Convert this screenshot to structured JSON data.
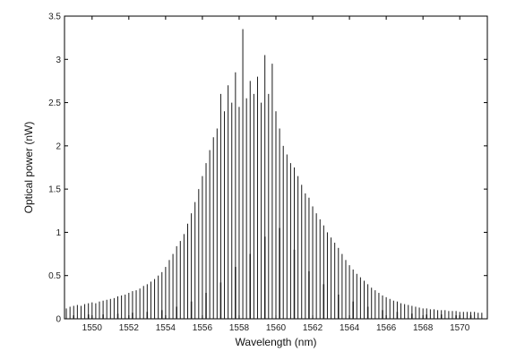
{
  "chart_data": {
    "type": "line",
    "title": "",
    "xlabel": "Wavelength (nm)",
    "ylabel": "Optical power (nW)",
    "xlim": [
      1548.5,
      1571.5
    ],
    "ylim": [
      0,
      3.5
    ],
    "xticks": [
      "1550",
      "1552",
      "1554",
      "1556",
      "1558",
      "1560",
      "1562",
      "1564",
      "1566",
      "1568",
      "1570"
    ],
    "yticks": [
      "0",
      "0.5",
      "1",
      "1.5",
      "2",
      "2.5",
      "3",
      "3.5"
    ],
    "grid": false,
    "legend": "none",
    "line_color": "#1a1a1a",
    "series": [
      {
        "x": [
          1548.6,
          1548.8,
          1549.0,
          1549.2,
          1549.4,
          1549.6,
          1549.8,
          1550.0,
          1550.2,
          1550.4,
          1550.6,
          1550.8,
          1551.0,
          1551.2,
          1551.4,
          1551.6,
          1551.8,
          1552.0,
          1552.2,
          1552.4,
          1552.6,
          1552.8,
          1553.0,
          1553.2,
          1553.4,
          1553.6,
          1553.8,
          1554.0,
          1554.2,
          1554.4,
          1554.6,
          1554.8,
          1555.0,
          1555.2,
          1555.4,
          1555.6,
          1555.8,
          1556.0,
          1556.2,
          1556.4,
          1556.6,
          1556.8,
          1557.0,
          1557.2,
          1557.4,
          1557.6,
          1557.8,
          1558.0,
          1558.2,
          1558.4,
          1558.6,
          1558.8,
          1559.0,
          1559.2,
          1559.4,
          1559.6,
          1559.8,
          1560.0,
          1560.2,
          1560.4,
          1560.6,
          1560.8,
          1561.0,
          1561.2,
          1561.4,
          1561.6,
          1561.8,
          1562.0,
          1562.2,
          1562.4,
          1562.6,
          1562.8,
          1563.0,
          1563.2,
          1563.4,
          1563.6,
          1563.8,
          1564.0,
          1564.2,
          1564.4,
          1564.6,
          1564.8,
          1565.0,
          1565.2,
          1565.4,
          1565.6,
          1565.8,
          1566.0,
          1566.2,
          1566.4,
          1566.6,
          1566.8,
          1567.0,
          1567.2,
          1567.4,
          1567.6,
          1567.8,
          1568.0,
          1568.2,
          1568.4,
          1568.6,
          1568.8,
          1569.0,
          1569.2,
          1569.4,
          1569.6,
          1569.8,
          1570.0,
          1570.2,
          1570.4,
          1570.6,
          1570.8,
          1571.0,
          1571.2
        ],
        "y": [
          0.12,
          0.14,
          0.15,
          0.16,
          0.15,
          0.17,
          0.18,
          0.19,
          0.18,
          0.2,
          0.21,
          0.22,
          0.23,
          0.24,
          0.26,
          0.27,
          0.28,
          0.3,
          0.32,
          0.33,
          0.35,
          0.38,
          0.4,
          0.43,
          0.46,
          0.5,
          0.54,
          0.6,
          0.68,
          0.75,
          0.84,
          0.9,
          0.98,
          1.1,
          1.22,
          1.35,
          1.5,
          1.65,
          1.8,
          1.95,
          2.1,
          2.2,
          2.6,
          2.4,
          2.7,
          2.5,
          2.85,
          2.45,
          3.35,
          2.55,
          2.75,
          2.6,
          2.8,
          2.5,
          3.05,
          2.6,
          2.95,
          2.4,
          2.2,
          2.0,
          1.9,
          1.8,
          1.75,
          1.65,
          1.55,
          1.45,
          1.4,
          1.3,
          1.22,
          1.15,
          1.08,
          1.0,
          0.94,
          0.88,
          0.82,
          0.75,
          0.68,
          0.62,
          0.57,
          0.52,
          0.48,
          0.44,
          0.4,
          0.36,
          0.33,
          0.3,
          0.27,
          0.25,
          0.23,
          0.21,
          0.2,
          0.18,
          0.17,
          0.16,
          0.15,
          0.14,
          0.13,
          0.12,
          0.12,
          0.11,
          0.11,
          0.1,
          0.1,
          0.1,
          0.09,
          0.09,
          0.09,
          0.08,
          0.08,
          0.08,
          0.08,
          0.08,
          0.07,
          0.07
        ]
      },
      {
        "x": [
          1549.0,
          1549.8,
          1550.6,
          1551.4,
          1552.2,
          1553.0,
          1553.8,
          1554.6,
          1555.4,
          1556.2,
          1557.0,
          1557.8,
          1558.6,
          1559.4,
          1560.2,
          1561.0,
          1561.8,
          1562.6,
          1563.4,
          1564.2,
          1565.0,
          1565.8,
          1566.6,
          1567.4,
          1568.2,
          1569.0,
          1569.8,
          1570.6
        ],
        "y": [
          0.04,
          0.05,
          0.05,
          0.06,
          0.07,
          0.08,
          0.1,
          0.14,
          0.2,
          0.3,
          0.42,
          0.6,
          0.75,
          0.95,
          1.05,
          0.8,
          0.55,
          0.4,
          0.28,
          0.2,
          0.14,
          0.1,
          0.08,
          0.06,
          0.05,
          0.05,
          0.04,
          0.04
        ]
      }
    ]
  }
}
